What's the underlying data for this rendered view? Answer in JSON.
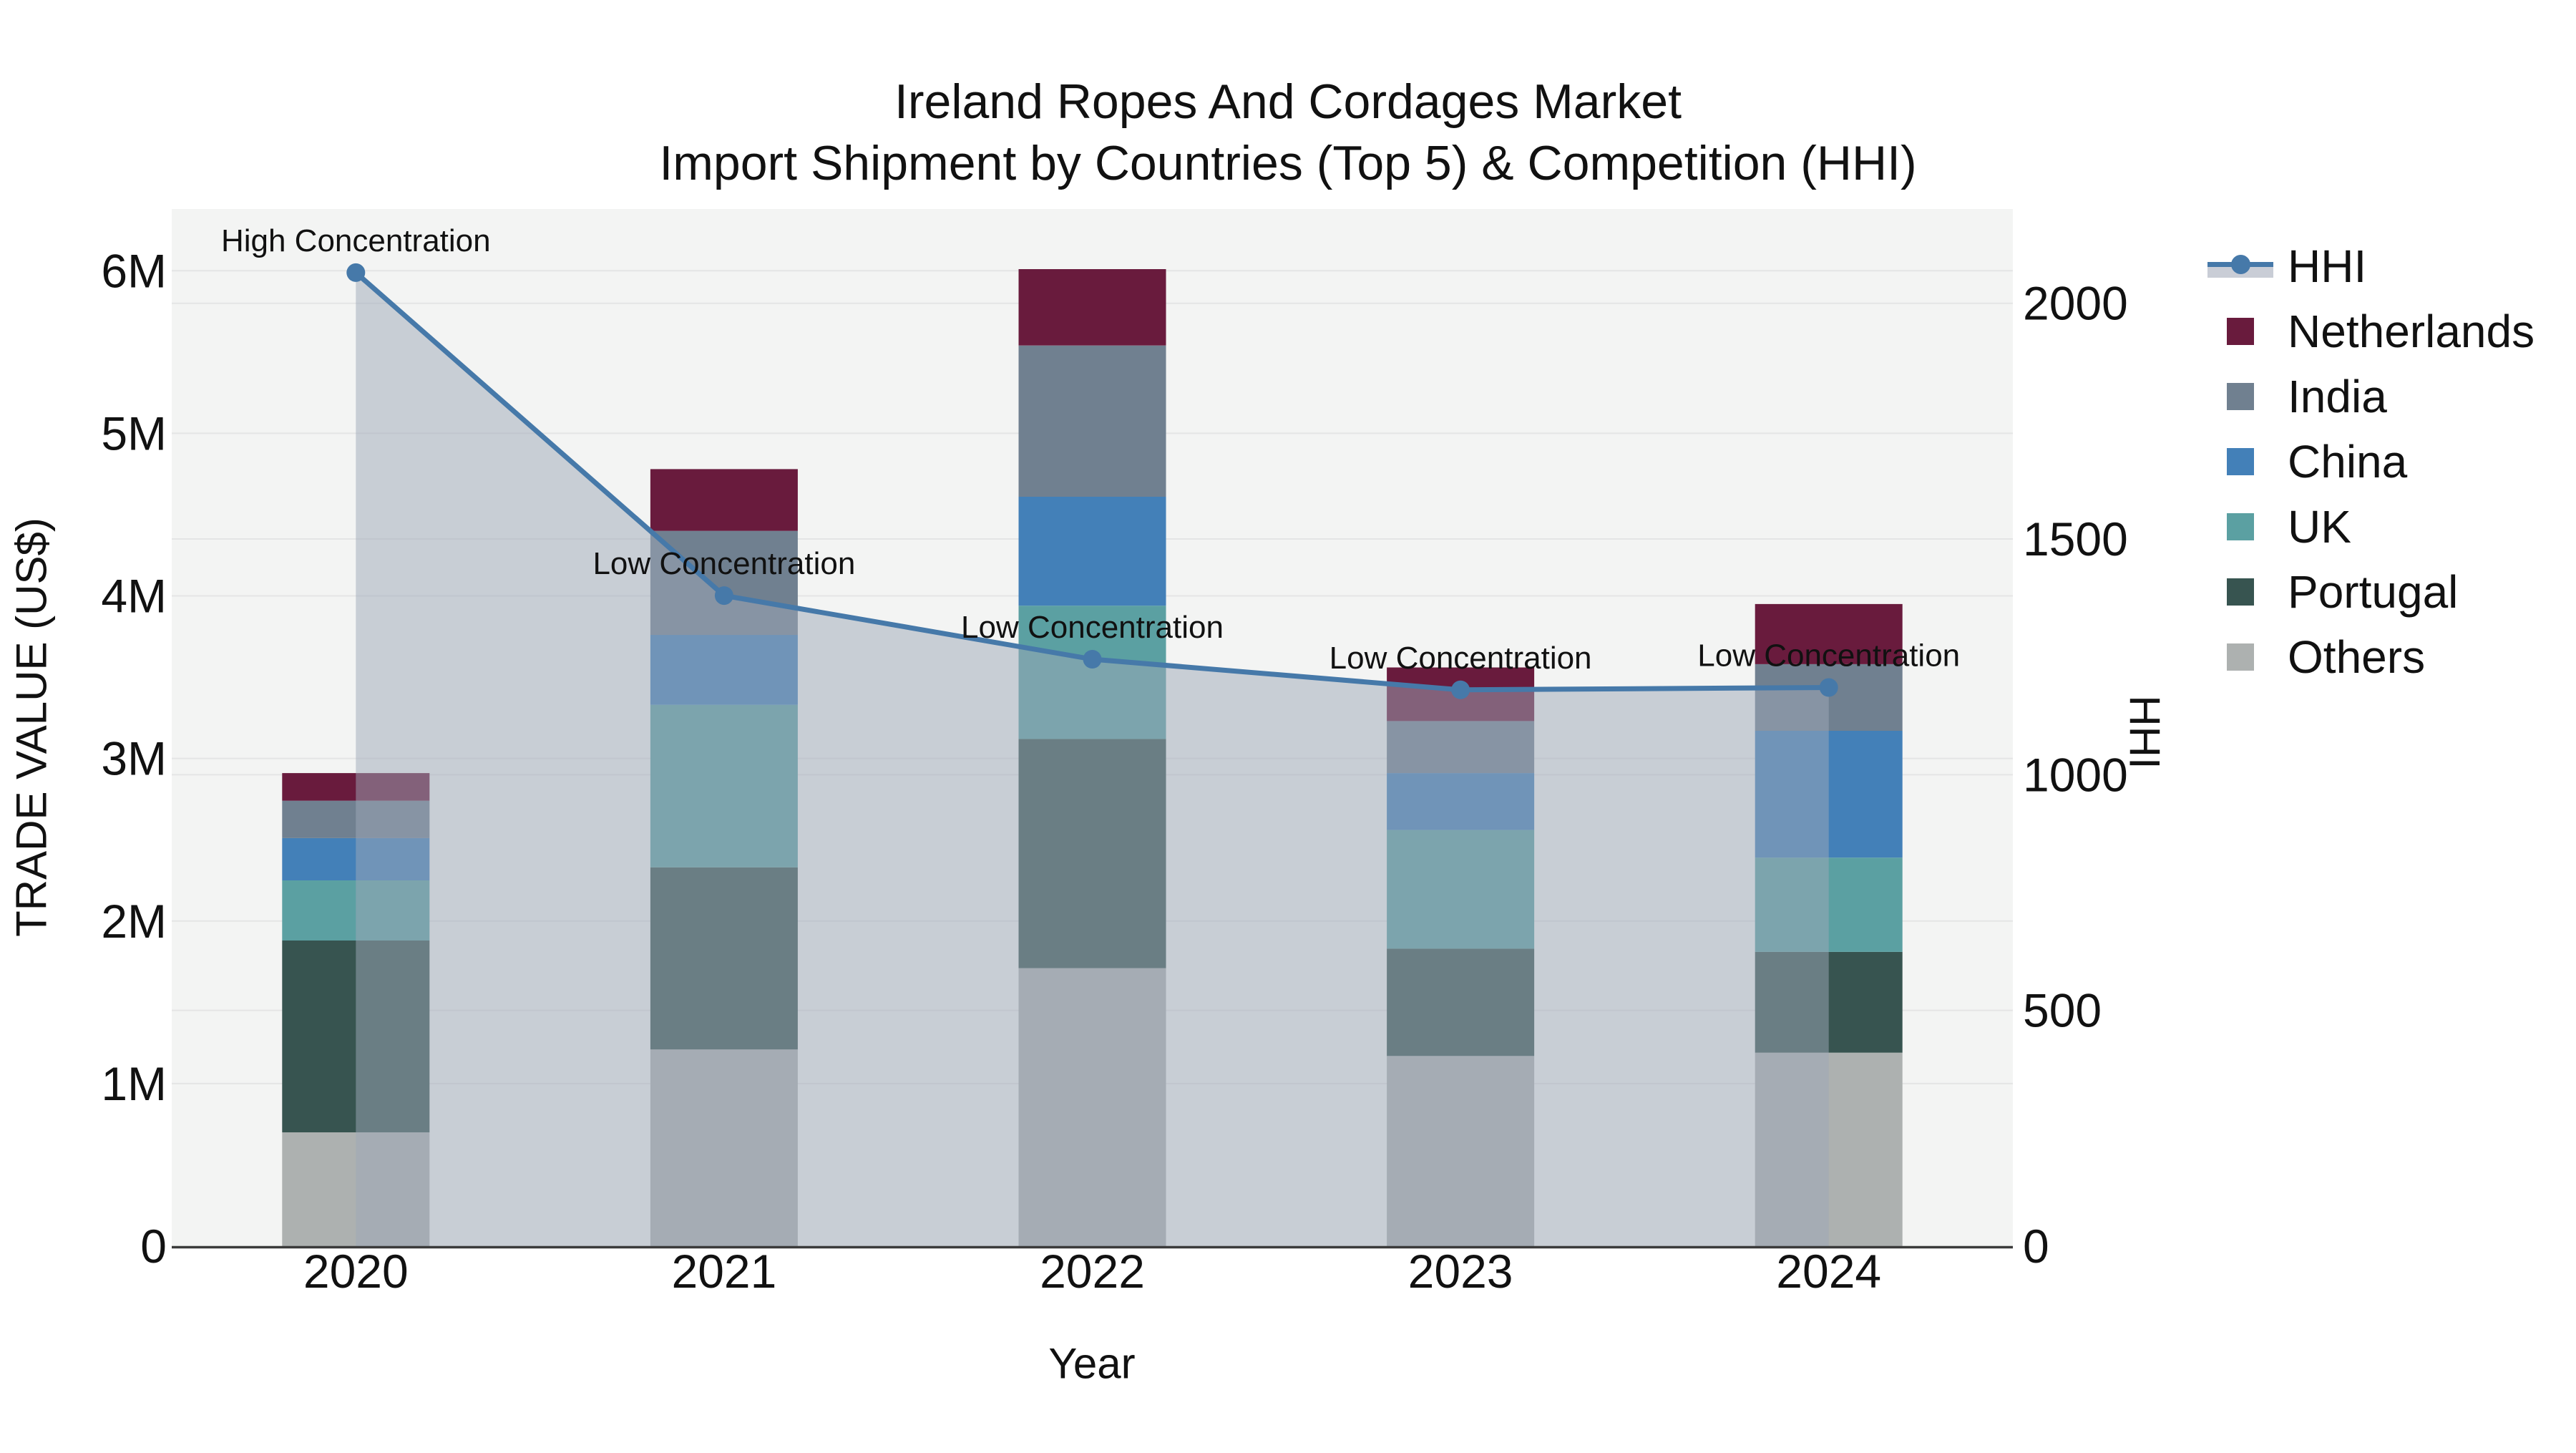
{
  "title": {
    "line1": "Ireland Ropes And Cordages Market",
    "line2": "Import Shipment by Countries (Top 5) & Competition (HHI)"
  },
  "axes": {
    "left_title": "TRADE VALUE (US$)",
    "right_title": "HHI",
    "x_title": "Year",
    "left_ticks": [
      {
        "v": 0,
        "label": "0"
      },
      {
        "v": 1000000,
        "label": "1M"
      },
      {
        "v": 2000000,
        "label": "2M"
      },
      {
        "v": 3000000,
        "label": "3M"
      },
      {
        "v": 4000000,
        "label": "4M"
      },
      {
        "v": 5000000,
        "label": "5M"
      },
      {
        "v": 6000000,
        "label": "6M"
      }
    ],
    "right_ticks": [
      {
        "v": 0,
        "label": "0"
      },
      {
        "v": 500,
        "label": "500"
      },
      {
        "v": 1000,
        "label": "1000"
      },
      {
        "v": 1500,
        "label": "1500"
      },
      {
        "v": 2000,
        "label": "2000"
      }
    ]
  },
  "legend": {
    "items": [
      {
        "label": "HHI",
        "kind": "line",
        "color": "#4679A9"
      },
      {
        "label": "Netherlands",
        "kind": "swatch",
        "color": "#691B3D"
      },
      {
        "label": "India",
        "kind": "swatch",
        "color": "#708090"
      },
      {
        "label": "China",
        "kind": "swatch",
        "color": "#4380B8"
      },
      {
        "label": "UK",
        "kind": "swatch",
        "color": "#5BA0A2"
      },
      {
        "label": "Portugal",
        "kind": "swatch",
        "color": "#375450"
      },
      {
        "label": "Others",
        "kind": "swatch",
        "color": "#ADB1B0"
      }
    ]
  },
  "chart_data": {
    "type": "stacked-bar+line",
    "title": "Ireland Ropes And Cordages Market Import Shipment by Countries (Top 5) & Competition (HHI)",
    "categories": [
      "2020",
      "2021",
      "2022",
      "2023",
      "2024"
    ],
    "bar_series": [
      {
        "name": "Others",
        "color": "#ADB1B0",
        "values": [
          700000,
          1210000,
          1710000,
          1170000,
          1190000
        ]
      },
      {
        "name": "Portugal",
        "color": "#375450",
        "values": [
          1180000,
          1120000,
          1410000,
          660000,
          620000
        ]
      },
      {
        "name": "UK",
        "color": "#5BA0A2",
        "values": [
          370000,
          1000000,
          820000,
          730000,
          580000
        ]
      },
      {
        "name": "China",
        "color": "#4380B8",
        "values": [
          260000,
          430000,
          670000,
          350000,
          780000
        ]
      },
      {
        "name": "India",
        "color": "#708090",
        "values": [
          230000,
          640000,
          930000,
          320000,
          410000
        ]
      },
      {
        "name": "Netherlands",
        "color": "#691B3D",
        "values": [
          170000,
          380000,
          470000,
          330000,
          370000
        ]
      }
    ],
    "bar_totals": [
      2910000,
      4780000,
      6010000,
      3560000,
      3950000
    ],
    "line_series": {
      "name": "HHI",
      "color": "#4679A9",
      "band_color": "rgba(158,168,184,0.5)",
      "values": [
        2065,
        1380,
        1245,
        1180,
        1185
      ]
    },
    "annotations": [
      {
        "x": "2020",
        "text": "High Concentration"
      },
      {
        "x": "2021",
        "text": "Low Concentration"
      },
      {
        "x": "2022",
        "text": "Low Concentration"
      },
      {
        "x": "2023",
        "text": "Low Concentration"
      },
      {
        "x": "2024",
        "text": "Low Concentration"
      }
    ],
    "left_axis": {
      "label": "TRADE VALUE (US$)",
      "min": 0,
      "max": 6380000
    },
    "right_axis": {
      "label": "HHI",
      "min": 0,
      "max": 2200
    },
    "xlabel": "Year",
    "grid": true,
    "legend_position": "right",
    "plot_bg": "#F3F4F3",
    "grid_color": "#E4E5E5",
    "axis_line_color": "#3B3B3B",
    "text_color": "#111111"
  }
}
